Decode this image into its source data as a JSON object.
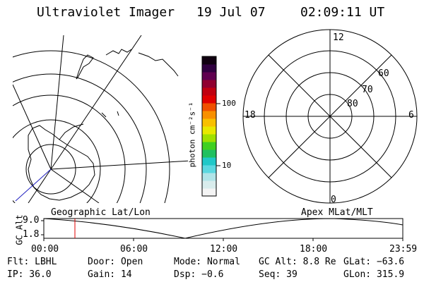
{
  "header": {
    "title": "Ultraviolet Imager",
    "date": "19 Jul 07",
    "time": "02:09:11 UT"
  },
  "colorbar": {
    "label": "photon cm⁻²s⁻¹",
    "ticks": [
      "100",
      "10"
    ]
  },
  "polar": {
    "mlt_labels": [
      "12",
      "18",
      "6",
      "0"
    ],
    "lat_labels": [
      "60",
      "70",
      "80"
    ]
  },
  "altitude_plot": {
    "ylabel": "GC Alt",
    "y_ticks": [
      "9.0",
      "1.8"
    ],
    "left_title": "Geographic Lat/Lon",
    "right_title": "Apex MLat/MLT",
    "x_ticks": [
      "00:00",
      "06:00",
      "12:00",
      "18:00",
      "23:59"
    ]
  },
  "status": {
    "row1": {
      "flt": "Flt: LBHL",
      "door": "Door: Open",
      "mode": "Mode: Normal",
      "gcalt": "GC Alt: 8.8 Re",
      "glat": "GLat: −63.6"
    },
    "row2": {
      "ip": "IP: 36.0",
      "gain": "Gain: 14",
      "dsp": "Dsp:   −0.6",
      "seq": "Seq: 39",
      "glon": "GLon: 315.9"
    }
  },
  "colors": {
    "marker": "#e00000",
    "track": "#2020c0"
  }
}
